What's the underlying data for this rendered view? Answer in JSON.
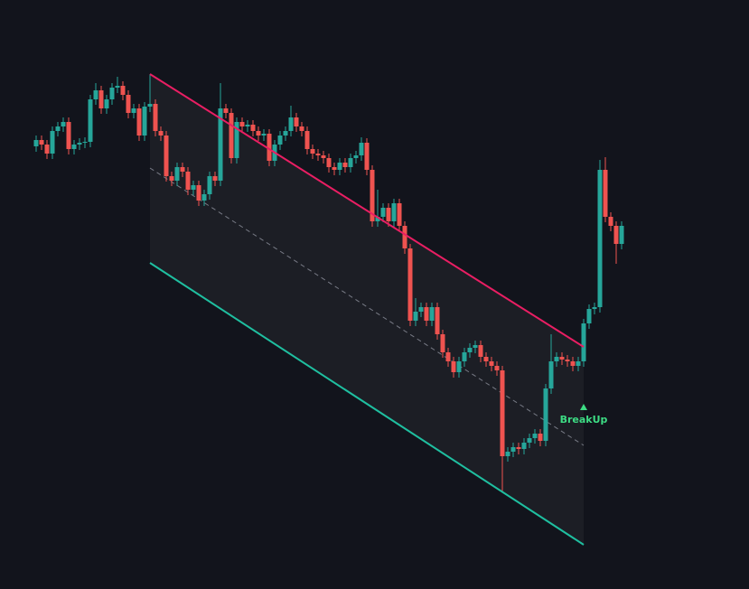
{
  "chart_data": {
    "type": "candlestick",
    "ylim": [
      0,
      652
    ],
    "up_color": "#26a69a",
    "down_color": "#ef5350",
    "open": [
      490,
      497,
      492,
      482,
      507,
      512,
      517,
      487,
      492,
      494,
      495,
      542,
      552,
      532,
      542,
      555,
      557,
      547,
      527,
      532,
      502,
      534,
      537,
      507,
      502,
      457,
      452,
      467,
      462,
      442,
      447,
      430,
      437,
      457,
      452,
      532,
      527,
      477,
      517,
      512,
      514,
      507,
      502,
      504,
      474,
      492,
      502,
      507,
      522,
      512,
      507,
      487,
      482,
      480,
      477,
      467,
      464,
      472,
      467,
      477,
      480,
      494,
      464,
      407,
      412,
      422,
      407,
      427,
      402,
      377,
      297,
      307,
      312,
      297,
      312,
      282,
      262,
      252,
      240,
      252,
      262,
      267,
      270,
      257,
      252,
      247,
      242,
      147,
      152,
      157,
      155,
      162,
      167,
      172,
      164,
      222,
      252,
      257,
      254,
      252,
      247,
      252,
      294,
      310,
      312,
      464,
      412,
      402,
      382
    ],
    "high": [
      502,
      502,
      497,
      512,
      517,
      522,
      522,
      497,
      499,
      500,
      547,
      560,
      557,
      547,
      560,
      567,
      562,
      552,
      537,
      537,
      539,
      570,
      542,
      512,
      507,
      462,
      472,
      472,
      467,
      452,
      452,
      442,
      462,
      462,
      560,
      537,
      532,
      522,
      522,
      519,
      519,
      512,
      509,
      509,
      497,
      507,
      512,
      535,
      527,
      517,
      512,
      492,
      487,
      485,
      482,
      472,
      477,
      477,
      482,
      485,
      500,
      499,
      469,
      442,
      427,
      427,
      432,
      432,
      407,
      382,
      322,
      317,
      317,
      317,
      317,
      287,
      267,
      257,
      257,
      267,
      272,
      275,
      275,
      262,
      257,
      252,
      247,
      157,
      162,
      162,
      167,
      172,
      177,
      177,
      227,
      282,
      262,
      262,
      259,
      257,
      257,
      299,
      315,
      317,
      475,
      478,
      417,
      407,
      407
    ],
    "low": [
      484,
      486,
      476,
      476,
      501,
      506,
      481,
      481,
      486,
      488,
      489,
      536,
      526,
      526,
      536,
      549,
      541,
      521,
      521,
      496,
      496,
      528,
      501,
      496,
      451,
      446,
      446,
      456,
      436,
      436,
      424,
      424,
      431,
      446,
      446,
      521,
      471,
      471,
      506,
      506,
      501,
      496,
      496,
      468,
      468,
      486,
      496,
      501,
      506,
      501,
      481,
      476,
      474,
      471,
      461,
      458,
      458,
      461,
      461,
      471,
      474,
      458,
      401,
      401,
      406,
      401,
      401,
      396,
      371,
      291,
      291,
      301,
      291,
      291,
      276,
      256,
      246,
      234,
      234,
      246,
      256,
      261,
      251,
      246,
      241,
      236,
      107,
      141,
      146,
      149,
      149,
      156,
      161,
      158,
      158,
      216,
      246,
      248,
      246,
      241,
      241,
      246,
      288,
      304,
      306,
      406,
      396,
      360,
      376
    ],
    "close": [
      497,
      492,
      482,
      507,
      512,
      517,
      487,
      492,
      494,
      495,
      542,
      552,
      532,
      542,
      555,
      557,
      547,
      527,
      532,
      502,
      534,
      537,
      507,
      502,
      457,
      452,
      467,
      462,
      442,
      447,
      430,
      437,
      457,
      452,
      532,
      527,
      477,
      517,
      512,
      514,
      507,
      502,
      504,
      474,
      492,
      502,
      507,
      522,
      512,
      507,
      487,
      482,
      480,
      477,
      467,
      464,
      472,
      467,
      477,
      480,
      494,
      464,
      407,
      412,
      422,
      407,
      427,
      402,
      377,
      297,
      307,
      312,
      297,
      312,
      282,
      262,
      252,
      240,
      252,
      262,
      267,
      270,
      257,
      252,
      247,
      242,
      147,
      152,
      157,
      155,
      162,
      167,
      172,
      164,
      222,
      252,
      257,
      254,
      252,
      247,
      252,
      294,
      310,
      312,
      464,
      412,
      402,
      382,
      402
    ],
    "channel": {
      "start": 21,
      "end": 101,
      "upper": {
        "color": "#e91e63",
        "values": [
          570,
          268
        ]
      },
      "middle": {
        "color": "#787b86",
        "values": [
          466,
          159
        ]
      },
      "lower": {
        "color": "#1fbfa0",
        "values": [
          361,
          49
        ]
      }
    },
    "annotation": {
      "text": "BreakUp",
      "at": 101,
      "color": "#3ddc84"
    }
  }
}
